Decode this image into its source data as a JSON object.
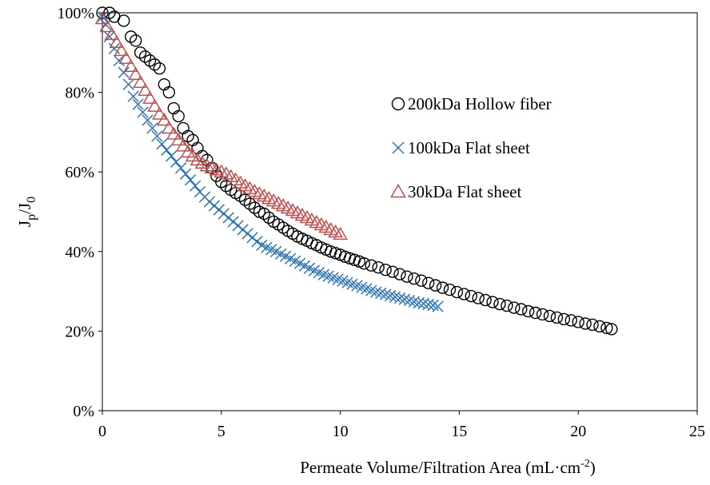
{
  "chart_data": {
    "type": "scatter",
    "xlabel": {
      "main": "Permeate Volume/Filtration Area (mL·cm",
      "sup": "-2",
      "tail": ")"
    },
    "ylabel": {
      "a": "J",
      "a_sub": "p",
      "mid": "/J",
      "b_sub": "0"
    },
    "xlim": [
      0,
      25
    ],
    "ylim": [
      0,
      1.0
    ],
    "x_ticks": [
      0,
      5,
      10,
      15,
      20,
      25
    ],
    "y_ticks": [
      0,
      0.2,
      0.4,
      0.6,
      0.8,
      1.0
    ],
    "x_tick_labels": [
      "0",
      "5",
      "10",
      "15",
      "20",
      "25"
    ],
    "y_tick_labels": [
      "0%",
      "20%",
      "40%",
      "60%",
      "80%",
      "100%"
    ],
    "grid": false,
    "legend_position": "right-middle",
    "series": [
      {
        "name": "200kDa Hollow fiber",
        "marker": "circle",
        "color": "#000000",
        "points": [
          [
            0.0,
            1.0
          ],
          [
            0.3,
            1.0
          ],
          [
            0.5,
            0.99
          ],
          [
            0.9,
            0.98
          ],
          [
            1.2,
            0.94
          ],
          [
            1.4,
            0.93
          ],
          [
            1.6,
            0.9
          ],
          [
            1.8,
            0.89
          ],
          [
            2.0,
            0.88
          ],
          [
            2.2,
            0.87
          ],
          [
            2.4,
            0.86
          ],
          [
            2.6,
            0.82
          ],
          [
            2.8,
            0.8
          ],
          [
            3.0,
            0.76
          ],
          [
            3.2,
            0.74
          ],
          [
            3.4,
            0.71
          ],
          [
            3.6,
            0.69
          ],
          [
            3.8,
            0.68
          ],
          [
            4.0,
            0.66
          ],
          [
            4.2,
            0.64
          ],
          [
            4.4,
            0.63
          ],
          [
            4.6,
            0.61
          ],
          [
            4.8,
            0.59
          ],
          [
            5.0,
            0.575
          ],
          [
            5.2,
            0.565
          ],
          [
            5.4,
            0.555
          ],
          [
            5.6,
            0.547
          ],
          [
            5.8,
            0.54
          ],
          [
            6.0,
            0.53
          ],
          [
            6.2,
            0.52
          ],
          [
            6.4,
            0.51
          ],
          [
            6.6,
            0.5
          ],
          [
            6.8,
            0.495
          ],
          [
            7.0,
            0.485
          ],
          [
            7.2,
            0.475
          ],
          [
            7.4,
            0.468
          ],
          [
            7.6,
            0.46
          ],
          [
            7.8,
            0.452
          ],
          [
            8.0,
            0.445
          ],
          [
            8.2,
            0.438
          ],
          [
            8.4,
            0.432
          ],
          [
            8.6,
            0.427
          ],
          [
            8.8,
            0.421
          ],
          [
            9.0,
            0.416
          ],
          [
            9.2,
            0.41
          ],
          [
            9.4,
            0.405
          ],
          [
            9.6,
            0.4
          ],
          [
            9.8,
            0.396
          ],
          [
            10.0,
            0.392
          ],
          [
            10.2,
            0.387
          ],
          [
            10.4,
            0.383
          ],
          [
            10.6,
            0.379
          ],
          [
            10.8,
            0.375
          ],
          [
            11.0,
            0.37
          ],
          [
            11.3,
            0.365
          ],
          [
            11.6,
            0.36
          ],
          [
            11.9,
            0.354
          ],
          [
            12.2,
            0.349
          ],
          [
            12.5,
            0.343
          ],
          [
            12.8,
            0.337
          ],
          [
            13.1,
            0.332
          ],
          [
            13.4,
            0.327
          ],
          [
            13.7,
            0.321
          ],
          [
            14.0,
            0.315
          ],
          [
            14.3,
            0.309
          ],
          [
            14.6,
            0.304
          ],
          [
            14.9,
            0.298
          ],
          [
            15.2,
            0.293
          ],
          [
            15.5,
            0.288
          ],
          [
            15.8,
            0.283
          ],
          [
            16.1,
            0.278
          ],
          [
            16.4,
            0.273
          ],
          [
            16.7,
            0.268
          ],
          [
            17.0,
            0.264
          ],
          [
            17.3,
            0.259
          ],
          [
            17.6,
            0.255
          ],
          [
            17.9,
            0.25
          ],
          [
            18.2,
            0.246
          ],
          [
            18.5,
            0.242
          ],
          [
            18.8,
            0.238
          ],
          [
            19.1,
            0.234
          ],
          [
            19.4,
            0.23
          ],
          [
            19.7,
            0.227
          ],
          [
            20.0,
            0.223
          ],
          [
            20.3,
            0.219
          ],
          [
            20.6,
            0.216
          ],
          [
            20.9,
            0.212
          ],
          [
            21.2,
            0.208
          ],
          [
            21.4,
            0.205
          ]
        ]
      },
      {
        "name": "100kDa Flat sheet",
        "marker": "x",
        "color": "#2e75b6",
        "points": [
          [
            0.0,
            0.99
          ],
          [
            0.15,
            0.97
          ],
          [
            0.3,
            0.94
          ],
          [
            0.5,
            0.91
          ],
          [
            0.7,
            0.88
          ],
          [
            0.9,
            0.85
          ],
          [
            1.1,
            0.82
          ],
          [
            1.3,
            0.79
          ],
          [
            1.5,
            0.77
          ],
          [
            1.7,
            0.75
          ],
          [
            1.9,
            0.73
          ],
          [
            2.1,
            0.71
          ],
          [
            2.3,
            0.69
          ],
          [
            2.5,
            0.67
          ],
          [
            2.7,
            0.655
          ],
          [
            2.9,
            0.64
          ],
          [
            3.1,
            0.625
          ],
          [
            3.3,
            0.61
          ],
          [
            3.5,
            0.595
          ],
          [
            3.7,
            0.58
          ],
          [
            3.9,
            0.565
          ],
          [
            4.1,
            0.55
          ],
          [
            4.3,
            0.537
          ],
          [
            4.5,
            0.525
          ],
          [
            4.7,
            0.515
          ],
          [
            4.9,
            0.505
          ],
          [
            5.1,
            0.495
          ],
          [
            5.3,
            0.485
          ],
          [
            5.5,
            0.475
          ],
          [
            5.7,
            0.465
          ],
          [
            5.9,
            0.455
          ],
          [
            6.1,
            0.445
          ],
          [
            6.3,
            0.435
          ],
          [
            6.5,
            0.425
          ],
          [
            6.7,
            0.416
          ],
          [
            6.9,
            0.41
          ],
          [
            7.1,
            0.405
          ],
          [
            7.3,
            0.4
          ],
          [
            7.5,
            0.394
          ],
          [
            7.7,
            0.388
          ],
          [
            7.9,
            0.382
          ],
          [
            8.1,
            0.376
          ],
          [
            8.3,
            0.37
          ],
          [
            8.5,
            0.364
          ],
          [
            8.7,
            0.358
          ],
          [
            8.9,
            0.352
          ],
          [
            9.1,
            0.347
          ],
          [
            9.3,
            0.342
          ],
          [
            9.5,
            0.338
          ],
          [
            9.7,
            0.334
          ],
          [
            9.9,
            0.33
          ],
          [
            10.1,
            0.326
          ],
          [
            10.3,
            0.322
          ],
          [
            10.5,
            0.318
          ],
          [
            10.7,
            0.314
          ],
          [
            10.9,
            0.31
          ],
          [
            11.1,
            0.306
          ],
          [
            11.3,
            0.302
          ],
          [
            11.5,
            0.298
          ],
          [
            11.7,
            0.295
          ],
          [
            11.9,
            0.292
          ],
          [
            12.1,
            0.289
          ],
          [
            12.3,
            0.286
          ],
          [
            12.5,
            0.283
          ],
          [
            12.7,
            0.28
          ],
          [
            12.9,
            0.277
          ],
          [
            13.1,
            0.274
          ],
          [
            13.3,
            0.271
          ],
          [
            13.5,
            0.269
          ],
          [
            13.7,
            0.267
          ],
          [
            13.9,
            0.265
          ],
          [
            14.1,
            0.262
          ]
        ]
      },
      {
        "name": "30kDa Flat sheet",
        "marker": "triangle",
        "color": "#c0504d",
        "points": [
          [
            0.0,
            0.985
          ],
          [
            0.2,
            0.965
          ],
          [
            0.4,
            0.945
          ],
          [
            0.6,
            0.925
          ],
          [
            0.8,
            0.905
          ],
          [
            1.0,
            0.885
          ],
          [
            1.2,
            0.865
          ],
          [
            1.4,
            0.845
          ],
          [
            1.6,
            0.825
          ],
          [
            1.8,
            0.805
          ],
          [
            2.0,
            0.785
          ],
          [
            2.2,
            0.765
          ],
          [
            2.4,
            0.745
          ],
          [
            2.6,
            0.73
          ],
          [
            2.8,
            0.71
          ],
          [
            3.0,
            0.695
          ],
          [
            3.2,
            0.68
          ],
          [
            3.4,
            0.665
          ],
          [
            3.6,
            0.65
          ],
          [
            3.8,
            0.64
          ],
          [
            4.0,
            0.63
          ],
          [
            4.2,
            0.622
          ],
          [
            4.4,
            0.615
          ],
          [
            4.6,
            0.61
          ],
          [
            4.8,
            0.605
          ],
          [
            5.0,
            0.6
          ],
          [
            5.2,
            0.595
          ],
          [
            5.4,
            0.588
          ],
          [
            5.6,
            0.58
          ],
          [
            5.8,
            0.572
          ],
          [
            6.0,
            0.565
          ],
          [
            6.2,
            0.558
          ],
          [
            6.4,
            0.551
          ],
          [
            6.6,
            0.545
          ],
          [
            6.8,
            0.539
          ],
          [
            7.0,
            0.533
          ],
          [
            7.2,
            0.527
          ],
          [
            7.4,
            0.521
          ],
          [
            7.6,
            0.515
          ],
          [
            7.8,
            0.509
          ],
          [
            8.0,
            0.503
          ],
          [
            8.2,
            0.497
          ],
          [
            8.4,
            0.491
          ],
          [
            8.6,
            0.485
          ],
          [
            8.8,
            0.479
          ],
          [
            9.0,
            0.473
          ],
          [
            9.2,
            0.467
          ],
          [
            9.4,
            0.461
          ],
          [
            9.6,
            0.455
          ],
          [
            9.8,
            0.449
          ],
          [
            10.0,
            0.443
          ]
        ]
      }
    ]
  }
}
